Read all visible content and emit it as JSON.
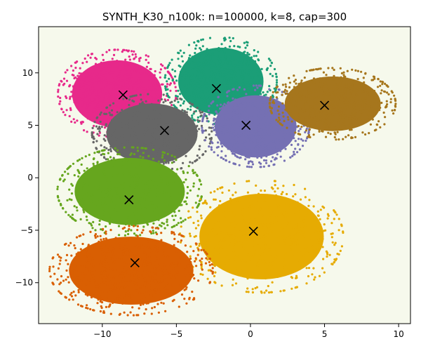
{
  "chart_data": {
    "type": "scatter",
    "title": "SYNTH_K30_n100k: n=100000, k=8, cap=300",
    "xlabel": "",
    "ylabel": "",
    "xlim": [
      -14.3,
      10.8
    ],
    "ylim": [
      -13.9,
      14.4
    ],
    "xticks": [
      -10,
      -5,
      0,
      5,
      10
    ],
    "yticks": [
      -10,
      -5,
      0,
      5,
      10
    ],
    "xtick_labels": [
      "−10",
      "−5",
      "0",
      "5",
      "10"
    ],
    "ytick_labels": [
      "−10",
      "−5",
      "0",
      "5",
      "10"
    ],
    "grid": false,
    "background_color": "#f6f9ec",
    "centroid_marker": "x",
    "centroid_color": "#000000",
    "clusters": [
      {
        "color": "#e7298a",
        "centroid": [
          -8.6,
          7.9
        ],
        "approx_extent": {
          "x": [
            -12.8,
            -5.2
          ],
          "y": [
            4.0,
            12.0
          ]
        }
      },
      {
        "color": "#1b9e77",
        "centroid": [
          -2.3,
          8.5
        ],
        "approx_extent": {
          "x": [
            -5.6,
            1.6
          ],
          "y": [
            5.2,
            13.2
          ]
        }
      },
      {
        "color": "#666666",
        "centroid": [
          -5.8,
          4.5
        ],
        "approx_extent": {
          "x": [
            -10.5,
            -2.8
          ],
          "y": [
            0.6,
            7.8
          ]
        }
      },
      {
        "color": "#7570b3",
        "centroid": [
          -0.3,
          5.0
        ],
        "approx_extent": {
          "x": [
            -3.1,
            3.8
          ],
          "y": [
            1.2,
            8.6
          ]
        }
      },
      {
        "color": "#a6761d",
        "centroid": [
          5.0,
          6.9
        ],
        "approx_extent": {
          "x": [
            1.5,
            9.6
          ],
          "y": [
            3.8,
            10.3
          ]
        }
      },
      {
        "color": "#66a61e",
        "centroid": [
          -8.2,
          -2.1
        ],
        "approx_extent": {
          "x": [
            -12.8,
            -3.5
          ],
          "y": [
            -5.3,
            2.7
          ]
        }
      },
      {
        "color": "#e6ab02",
        "centroid": [
          0.2,
          -5.1
        ],
        "approx_extent": {
          "x": [
            -4.5,
            6.0
          ],
          "y": [
            -10.7,
            -0.5
          ]
        }
      },
      {
        "color": "#d95f02",
        "centroid": [
          -7.8,
          -8.1
        ],
        "approx_extent": {
          "x": [
            -13.3,
            -2.8
          ],
          "y": [
            -12.9,
            -4.8
          ]
        }
      }
    ]
  }
}
